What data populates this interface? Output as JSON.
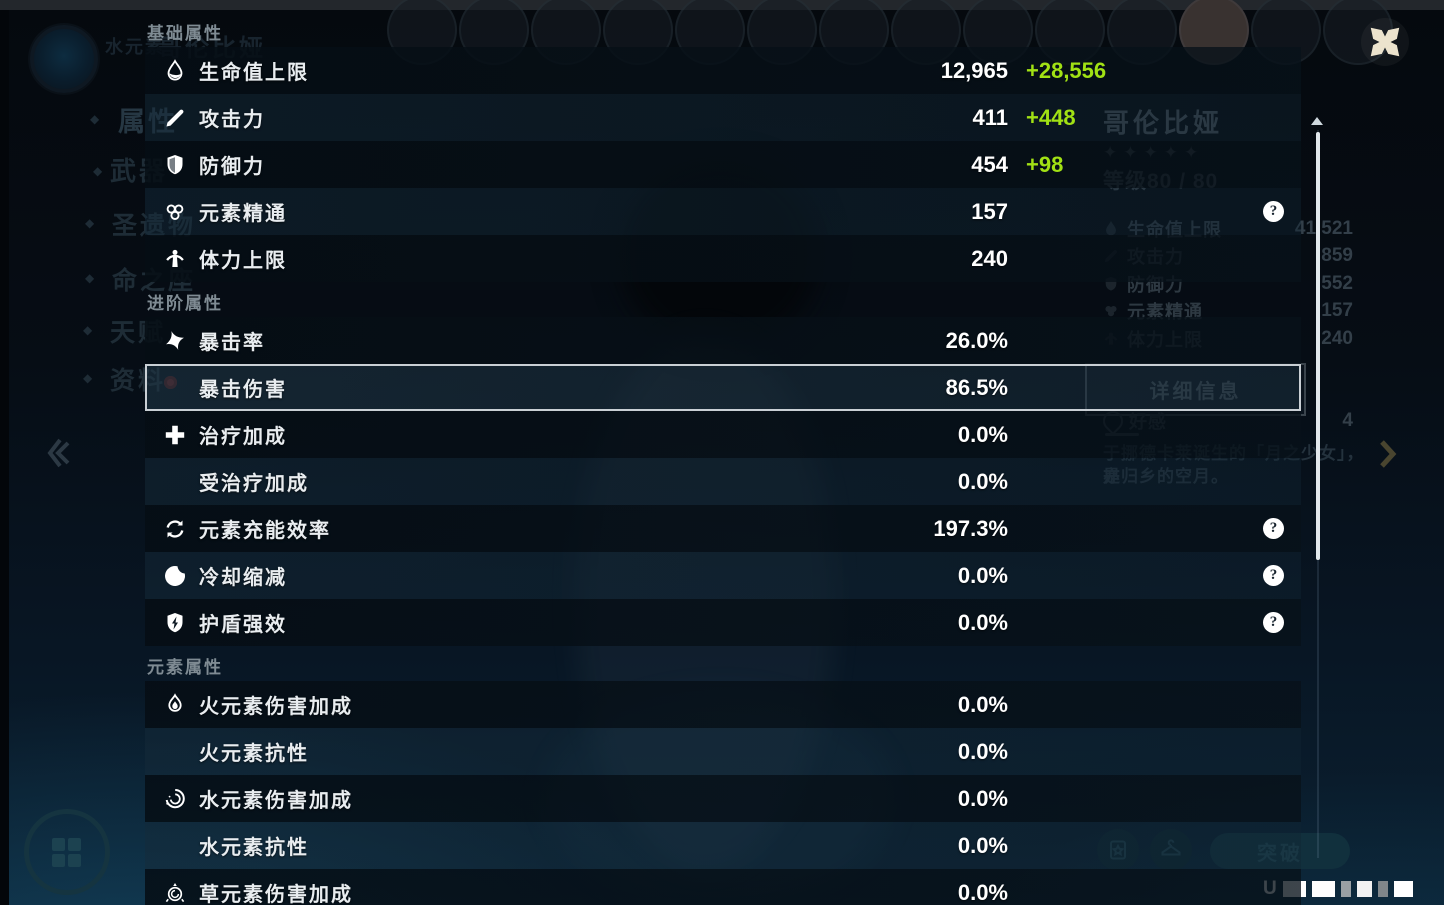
{
  "colors": {
    "bonus_green": "#a1e114",
    "panel_label": "#e9edf0",
    "section_title": "#7f8b93",
    "selected_border": "#c9cfd4"
  },
  "close_label": "close",
  "scrollbar": {
    "thumb_present": true
  },
  "left_menu": {
    "element_label": "水元素",
    "character_name_ghost": "哥伦比娅",
    "items": [
      {
        "label": "属性",
        "selected": true,
        "badge": false
      },
      {
        "label": "武器",
        "selected": false,
        "badge": false
      },
      {
        "label": "圣遗物",
        "selected": false,
        "badge": false
      },
      {
        "label": "命之座",
        "selected": false,
        "badge": false
      },
      {
        "label": "天赋",
        "selected": false,
        "badge": false
      },
      {
        "label": "资料",
        "selected": false,
        "badge": true
      }
    ]
  },
  "background_info": {
    "character_name": "哥伦比娅",
    "star_count": 5,
    "star_glyph": "✦",
    "level_label": "等级80 / 80",
    "avatar_count": 14,
    "stats": [
      {
        "icon": "hp-icon",
        "label": "生命值上限",
        "value": "41,521"
      },
      {
        "icon": "atk-icon",
        "label": "攻击力",
        "value": "859"
      },
      {
        "icon": "def-icon",
        "label": "防御力",
        "value": "552"
      },
      {
        "icon": "em-icon",
        "label": "元素精通",
        "value": "157"
      },
      {
        "icon": "stamina-icon",
        "label": "体力上限",
        "value": "240"
      }
    ],
    "details_button": "详细信息",
    "friendship_label": "好感",
    "friendship_value": "4",
    "flavor_line1": "于挪德卡莱诞生的「月之少女」，亦",
    "flavor_line2": "是归乡的空月。",
    "ascend_button": "突破",
    "uid_prefix": "U"
  },
  "panel": {
    "sections": [
      {
        "title": "基础属性",
        "rows": [
          {
            "icon": "hp-icon",
            "label": "生命值上限",
            "value": "12,965",
            "bonus": "+28,556",
            "help": false,
            "selected": false
          },
          {
            "icon": "atk-icon",
            "label": "攻击力",
            "value": "411",
            "bonus": "+448",
            "help": false,
            "selected": false
          },
          {
            "icon": "def-icon",
            "label": "防御力",
            "value": "454",
            "bonus": "+98",
            "help": false,
            "selected": false
          },
          {
            "icon": "em-icon",
            "label": "元素精通",
            "value": "157",
            "bonus": "",
            "help": true,
            "selected": false
          },
          {
            "icon": "stamina-icon",
            "label": "体力上限",
            "value": "240",
            "bonus": "",
            "help": false,
            "selected": false
          }
        ]
      },
      {
        "title": "进阶属性",
        "rows": [
          {
            "icon": "crit-rate-icon",
            "label": "暴击率",
            "value": "26.0%",
            "bonus": "",
            "help": false,
            "selected": false
          },
          {
            "icon": "",
            "label": "暴击伤害",
            "value": "86.5%",
            "bonus": "",
            "help": false,
            "selected": true
          },
          {
            "icon": "healing-bonus-icon",
            "label": "治疗加成",
            "value": "0.0%",
            "bonus": "",
            "help": false,
            "selected": false
          },
          {
            "icon": "",
            "label": "受治疗加成",
            "value": "0.0%",
            "bonus": "",
            "help": false,
            "selected": false
          },
          {
            "icon": "energy-recharge-icon",
            "label": "元素充能效率",
            "value": "197.3%",
            "bonus": "",
            "help": true,
            "selected": false
          },
          {
            "icon": "cd-reduction-icon",
            "label": "冷却缩减",
            "value": "0.0%",
            "bonus": "",
            "help": true,
            "selected": false
          },
          {
            "icon": "shield-strength-icon",
            "label": "护盾强效",
            "value": "0.0%",
            "bonus": "",
            "help": true,
            "selected": false
          }
        ]
      },
      {
        "title": "元素属性",
        "rows": [
          {
            "icon": "pyro-icon",
            "label": "火元素伤害加成",
            "value": "0.0%",
            "bonus": "",
            "help": false,
            "selected": false
          },
          {
            "icon": "",
            "label": "火元素抗性",
            "value": "0.0%",
            "bonus": "",
            "help": false,
            "selected": false
          },
          {
            "icon": "hydro-icon",
            "label": "水元素伤害加成",
            "value": "0.0%",
            "bonus": "",
            "help": false,
            "selected": false
          },
          {
            "icon": "",
            "label": "水元素抗性",
            "value": "0.0%",
            "bonus": "",
            "help": false,
            "selected": false
          },
          {
            "icon": "dendro-icon",
            "label": "草元素伤害加成",
            "value": "0.0%",
            "bonus": "",
            "help": false,
            "selected": false
          }
        ]
      }
    ]
  }
}
